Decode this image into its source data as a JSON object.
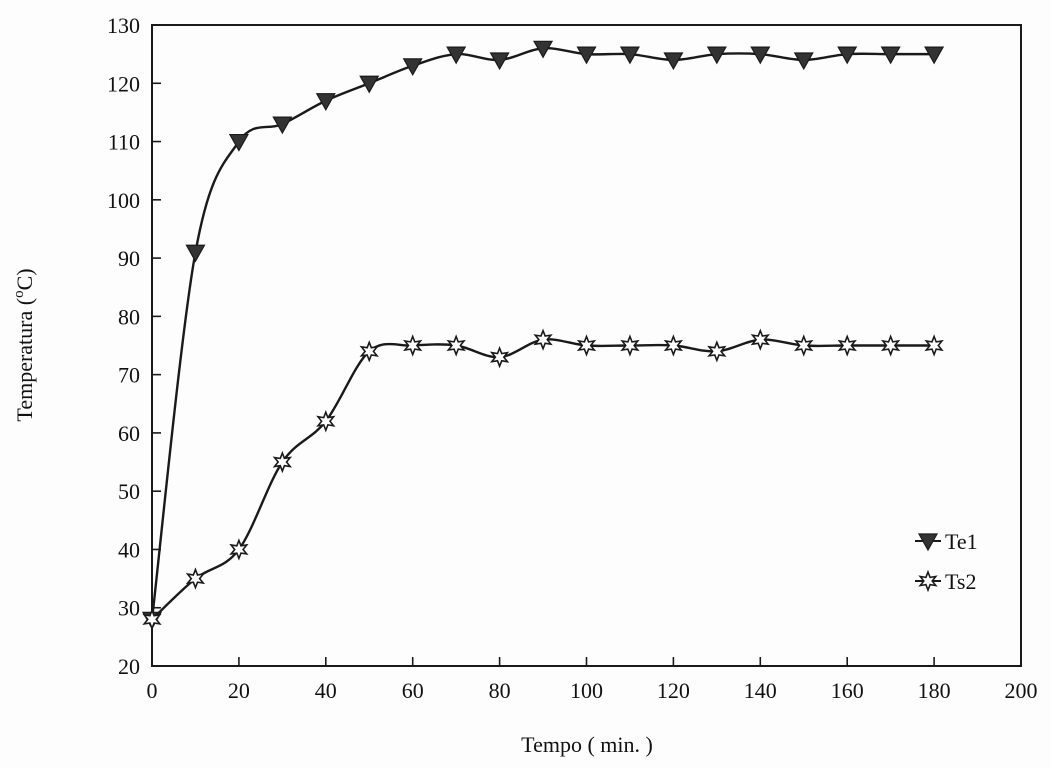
{
  "chart_data": {
    "type": "line",
    "title": "",
    "xlabel": "Tempo ( min. )",
    "ylabel_prefix": "Temperatura (",
    "ylabel_sup": "o",
    "ylabel_suffix": "C)",
    "xlim": [
      0,
      200
    ],
    "ylim": [
      20,
      130
    ],
    "x_ticks": [
      0,
      20,
      40,
      60,
      80,
      100,
      120,
      140,
      160,
      180,
      200
    ],
    "y_ticks": [
      20,
      30,
      40,
      50,
      60,
      70,
      80,
      90,
      100,
      110,
      120,
      130
    ],
    "grid": false,
    "legend_position": "bottom-right",
    "x": [
      0,
      10,
      20,
      30,
      40,
      50,
      60,
      70,
      80,
      90,
      100,
      110,
      120,
      130,
      140,
      150,
      160,
      170,
      180
    ],
    "series": [
      {
        "name": "Te1",
        "marker": "filled-down-triangle",
        "values": [
          28,
          91,
          110,
          113,
          117,
          120,
          123,
          125,
          124,
          126,
          125,
          125,
          124,
          125,
          125,
          124,
          125,
          125,
          125
        ]
      },
      {
        "name": "Ts2",
        "marker": "open-star",
        "values": [
          28,
          35,
          40,
          55,
          62,
          74,
          75,
          75,
          73,
          76,
          75,
          75,
          75,
          74,
          76,
          75,
          75,
          75,
          75
        ]
      }
    ],
    "colors": {
      "line": "#1a1a1a",
      "marker_fill": "#333333",
      "background": "#fdfdfd"
    }
  }
}
